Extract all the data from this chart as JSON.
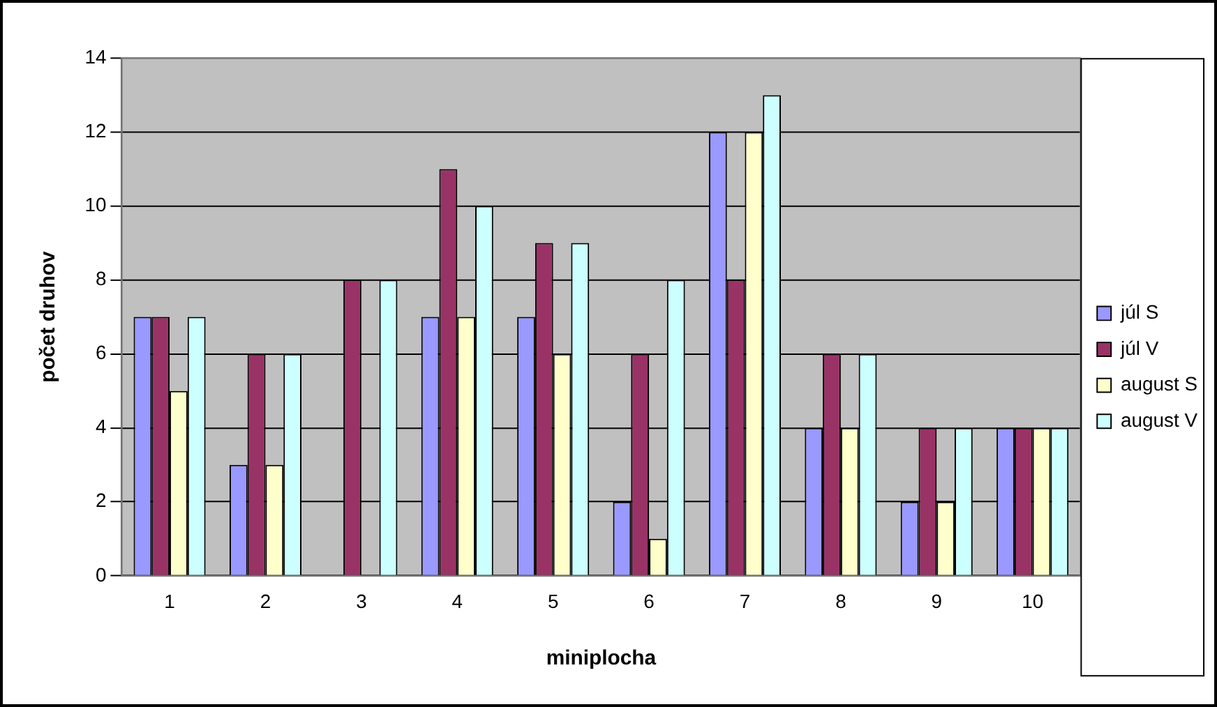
{
  "chart_data": {
    "type": "bar",
    "xlabel": "miniplocha",
    "ylabel": "počet druhov",
    "categories": [
      "1",
      "2",
      "3",
      "4",
      "5",
      "6",
      "7",
      "8",
      "9",
      "10"
    ],
    "series": [
      {
        "name": "júl S",
        "color": "#9999ff",
        "values": [
          7,
          3,
          0,
          7,
          7,
          2,
          12,
          4,
          2,
          4
        ]
      },
      {
        "name": "júl V",
        "color": "#993366",
        "values": [
          7,
          6,
          8,
          11,
          9,
          6,
          8,
          6,
          4,
          4
        ]
      },
      {
        "name": "august S",
        "color": "#ffffcc",
        "values": [
          5,
          3,
          0,
          7,
          6,
          1,
          12,
          4,
          2,
          4
        ]
      },
      {
        "name": "august V",
        "color": "#ccffff",
        "values": [
          7,
          6,
          8,
          10,
          9,
          8,
          13,
          6,
          4,
          4
        ]
      }
    ],
    "ylim": [
      0,
      14
    ],
    "yticks": [
      0,
      2,
      4,
      6,
      8,
      10,
      12,
      14
    ],
    "grid": "y",
    "legend": "right"
  }
}
